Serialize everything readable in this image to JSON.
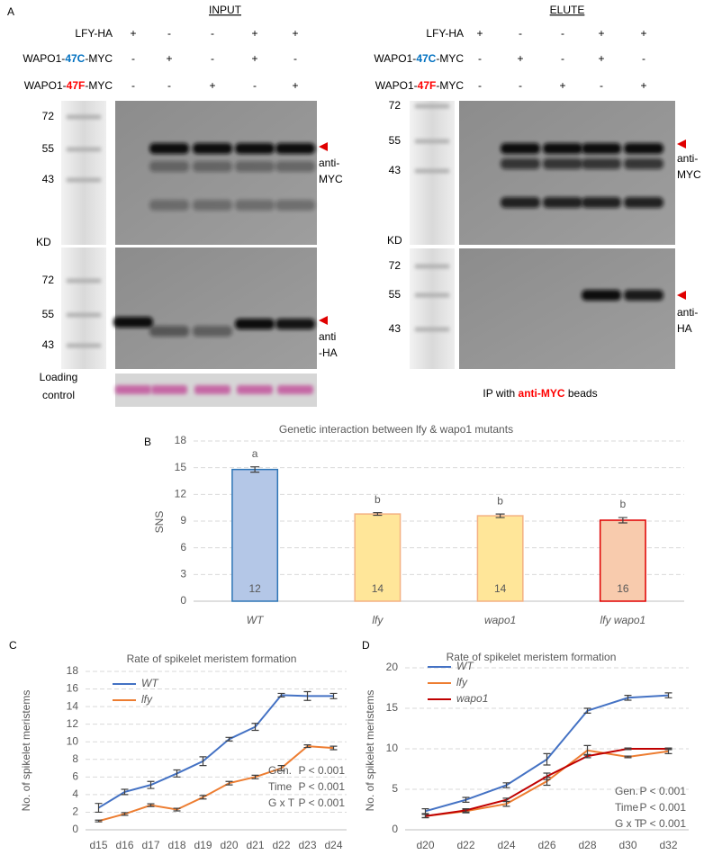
{
  "panel_a": {
    "label": "A",
    "blots": [
      {
        "heading": "INPUT",
        "rows": [
          {
            "parts": [
              "LFY-HA"
            ],
            "signs": [
              "+",
              "-",
              "-",
              "+",
              "+"
            ]
          },
          {
            "parts": [
              "WAPO1-",
              "47C",
              "-MYC"
            ],
            "highlight_color": "#0070c0",
            "signs": [
              "-",
              "+",
              "-",
              "+",
              "-"
            ]
          },
          {
            "parts": [
              "WAPO1-",
              "47F",
              "-MYC"
            ],
            "highlight_color": "#ff0000",
            "signs": [
              "-",
              "-",
              "+",
              "-",
              "+"
            ]
          }
        ],
        "top_markers": [
          "72",
          "55",
          "43"
        ],
        "unit": "KD",
        "bottom_markers": [
          "72",
          "55",
          "43"
        ],
        "top_probe": [
          "anti-",
          "MYC"
        ],
        "bottom_probe": [
          "anti",
          "-HA"
        ],
        "loading_control": [
          "Loading",
          "control"
        ]
      },
      {
        "heading": "ELUTE",
        "rows": [
          {
            "parts": [
              "LFY-HA"
            ],
            "signs": [
              "+",
              "-",
              "-",
              "+",
              "+"
            ]
          },
          {
            "parts": [
              "WAPO1-",
              "47C",
              "-MYC"
            ],
            "highlight_color": "#0070c0",
            "signs": [
              "-",
              "+",
              "-",
              "+",
              "-"
            ]
          },
          {
            "parts": [
              "WAPO1-",
              "47F",
              "-MYC"
            ],
            "highlight_color": "#ff0000",
            "signs": [
              "-",
              "-",
              "+",
              "-",
              "+"
            ]
          }
        ],
        "top_markers": [
          "72",
          "55",
          "43"
        ],
        "unit": "KD",
        "bottom_markers": [
          "72",
          "55",
          "43"
        ],
        "top_probe": [
          "anti-",
          "MYC"
        ],
        "bottom_probe": [
          "anti-",
          "HA"
        ],
        "footer": [
          "IP with ",
          "anti-MYC",
          " beads"
        ],
        "footer_highlight_color": "#ff0000"
      }
    ]
  },
  "chart_data": [
    {
      "type": "bar",
      "panel_label": "B",
      "title": "Genetic interaction between lfy & wapo1 mutants",
      "ylabel": "SNS",
      "categories": [
        "WT",
        "lfy",
        "wapo1",
        "lfy wapo1"
      ],
      "values": [
        14.8,
        9.8,
        9.6,
        9.1
      ],
      "errors": [
        0.3,
        0.15,
        0.2,
        0.3
      ],
      "counts": [
        12,
        14,
        14,
        16
      ],
      "letters": [
        "a",
        "b",
        "b",
        "b"
      ],
      "colors": [
        "#b4c7e7",
        "#ffe699",
        "#ffe699",
        "#f8cbad"
      ],
      "edge_colors": [
        "#2e75b6",
        "#f4b183",
        "#f4b183",
        "#e00000"
      ],
      "ylim": [
        0,
        18
      ],
      "yticks": [
        0,
        3,
        6,
        9,
        12,
        15,
        18
      ],
      "grid": true
    },
    {
      "type": "line",
      "panel_label": "C",
      "title": "Rate of spikelet meristem formation",
      "ylabel": "No. of spikelet meristems",
      "categories": [
        "d15",
        "d16",
        "d17",
        "d18",
        "d19",
        "d20",
        "d21",
        "d22",
        "d23",
        "d24"
      ],
      "series": [
        {
          "name": "WT",
          "color": "#4472c4",
          "values": [
            2.5,
            4.3,
            5.1,
            6.4,
            7.8,
            10.3,
            11.7,
            15.3,
            15.2,
            15.2
          ],
          "errors": [
            0.5,
            0.3,
            0.4,
            0.4,
            0.5,
            0.2,
            0.4,
            0.2,
            0.5,
            0.3
          ]
        },
        {
          "name": "lfy",
          "color": "#ed7d31",
          "values": [
            1.0,
            1.8,
            2.8,
            2.3,
            3.7,
            5.3,
            6.0,
            7.0,
            9.5,
            9.3
          ],
          "errors": [
            0.1,
            0.15,
            0.15,
            0.15,
            0.2,
            0.2,
            0.2,
            0.3,
            0.15,
            0.2
          ]
        }
      ],
      "ylim": [
        0,
        18
      ],
      "yticks": [
        0,
        2,
        4,
        6,
        8,
        10,
        12,
        14,
        16,
        18
      ],
      "grid": true,
      "legend": "upper left",
      "stats": [
        {
          "term": "Gen.",
          "p": "P < 0.001"
        },
        {
          "term": "Time",
          "p": "P < 0.001"
        },
        {
          "term": "G x T",
          "p": "P < 0.001"
        }
      ]
    },
    {
      "type": "line",
      "panel_label": "D",
      "title": "Rate of spikelet meristem formation",
      "ylabel": "No. of spikelet meristems",
      "categories": [
        "d20",
        "d22",
        "d24",
        "d26",
        "d28",
        "d30",
        "d32"
      ],
      "series": [
        {
          "name": "WT",
          "color": "#4472c4",
          "values": [
            2.3,
            3.7,
            5.5,
            8.7,
            14.7,
            16.3,
            16.6
          ],
          "errors": [
            0.3,
            0.3,
            0.3,
            0.7,
            0.3,
            0.3,
            0.3
          ]
        },
        {
          "name": "lfy",
          "color": "#ed7d31",
          "values": [
            1.7,
            2.3,
            3.2,
            6.0,
            9.8,
            9.0,
            9.7
          ],
          "errors": [
            0.2,
            0.2,
            0.3,
            0.5,
            0.6,
            0.1,
            0.3
          ]
        },
        {
          "name": "wapo1",
          "color": "#c00000",
          "values": [
            1.7,
            2.4,
            3.7,
            6.6,
            9.1,
            10.0,
            10.0
          ],
          "errors": [
            0.2,
            0.2,
            0.2,
            0.4,
            0.2,
            0.1,
            0.1
          ]
        }
      ],
      "ylim": [
        0,
        20
      ],
      "yticks": [
        0,
        5,
        10,
        15,
        20
      ],
      "grid": true,
      "legend": "upper left",
      "stats": [
        {
          "term": "Gen.",
          "p": "P < 0.001"
        },
        {
          "term": "Time",
          "p": "P < 0.001"
        },
        {
          "term": "G x T",
          "p": "P < 0.001"
        }
      ]
    }
  ]
}
